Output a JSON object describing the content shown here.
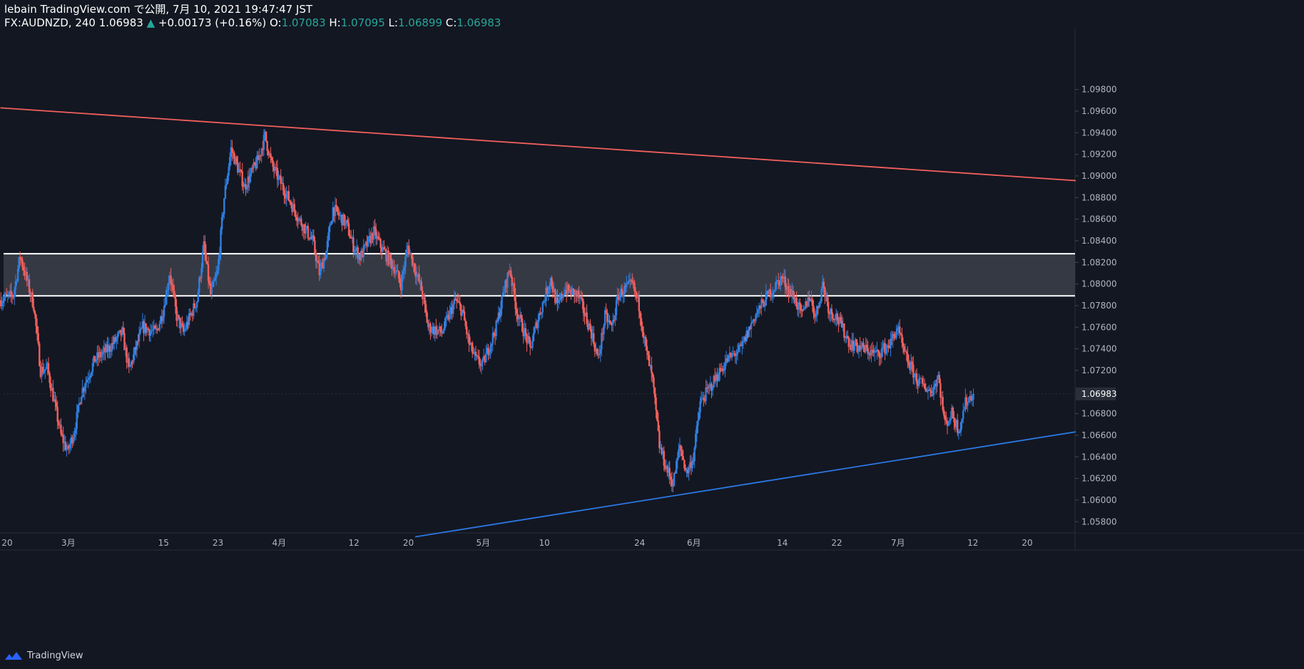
{
  "header": {
    "publisher": "lebain TradingView.com で公開, 7月 10, 2021 19:47:47 JST",
    "symbol": "FX:AUDNZD, 240",
    "last": "1.06983",
    "change": "+0.00173 (+0.16%)",
    "o_label": "O:",
    "o_value": "1.07083",
    "h_label": "H:",
    "h_value": "1.07095",
    "l_label": "L:",
    "l_value": "1.06899",
    "c_label": "C:",
    "c_value": "1.06983"
  },
  "footer": {
    "brand": "TradingView"
  },
  "colors": {
    "background": "#131722",
    "up_candle": "#2f7fe0",
    "down_candle": "#f2605c",
    "resistance_line": "#f2605c",
    "support_line": "#2b78e4",
    "zone_fill": "#3a3d47",
    "zone_border": "#ffffff",
    "axis_text": "#b2b5be"
  },
  "chart_data": {
    "type": "candlestick",
    "symbol": "FX:AUDNZD",
    "timeframe": "240",
    "y_ticks": [
      "1.09800",
      "1.09600",
      "1.09400",
      "1.09200",
      "1.09000",
      "1.08800",
      "1.08600",
      "1.08400",
      "1.08200",
      "1.08000",
      "1.07800",
      "1.07600",
      "1.07400",
      "1.07200",
      "1.06800",
      "1.06600",
      "1.06400",
      "1.06200",
      "1.06000",
      "1.05800"
    ],
    "ylim": [
      1.0565,
      1.099
    ],
    "x_ticks": [
      "20",
      "3月",
      "15",
      "23",
      "4月",
      "12",
      "20",
      "5月",
      "10",
      "24",
      "6月",
      "14",
      "22",
      "7月",
      "12",
      "20"
    ],
    "x_tick_dates": [
      "2021-02-20",
      "2021-03-01",
      "2021-03-15",
      "2021-03-23",
      "2021-04-01",
      "2021-04-12",
      "2021-04-20",
      "2021-05-01",
      "2021-05-10",
      "2021-05-24",
      "2021-06-01",
      "2021-06-14",
      "2021-06-22",
      "2021-07-01",
      "2021-07-12",
      "2021-07-20"
    ],
    "last_price": "1.06983",
    "price_path": [
      [
        "2021-02-19",
        1.0785
      ],
      [
        "2021-02-21",
        1.079
      ],
      [
        "2021-02-22",
        1.0826
      ],
      [
        "2021-02-24",
        1.078
      ],
      [
        "2021-02-25",
        1.072
      ],
      [
        "2021-02-26",
        1.0722
      ],
      [
        "2021-02-28",
        1.066
      ],
      [
        "2021-03-01",
        1.0645
      ],
      [
        "2021-03-02",
        1.0665
      ],
      [
        "2021-03-03",
        1.07
      ],
      [
        "2021-03-05",
        1.073
      ],
      [
        "2021-03-07",
        1.074
      ],
      [
        "2021-03-09",
        1.0755
      ],
      [
        "2021-03-10",
        1.072
      ],
      [
        "2021-03-12",
        1.076
      ],
      [
        "2021-03-14",
        1.0755
      ],
      [
        "2021-03-15",
        1.0775
      ],
      [
        "2021-03-16",
        1.081
      ],
      [
        "2021-03-17",
        1.077
      ],
      [
        "2021-03-18",
        1.0755
      ],
      [
        "2021-03-19",
        1.077
      ],
      [
        "2021-03-20",
        1.0785
      ],
      [
        "2021-03-21",
        1.0835
      ],
      [
        "2021-03-22",
        1.079
      ],
      [
        "2021-03-23",
        1.081
      ],
      [
        "2021-03-24",
        1.088
      ],
      [
        "2021-03-25",
        1.0925
      ],
      [
        "2021-03-27",
        1.089
      ],
      [
        "2021-03-29",
        1.0915
      ],
      [
        "2021-03-30",
        1.0937
      ],
      [
        "2021-03-31",
        1.091
      ],
      [
        "2021-04-02",
        1.0885
      ],
      [
        "2021-04-04",
        1.086
      ],
      [
        "2021-04-06",
        1.084
      ],
      [
        "2021-04-07",
        1.081
      ],
      [
        "2021-04-08",
        1.083
      ],
      [
        "2021-04-09",
        1.087
      ],
      [
        "2021-04-11",
        1.0855
      ],
      [
        "2021-04-12",
        1.0835
      ],
      [
        "2021-04-13",
        1.0825
      ],
      [
        "2021-04-15",
        1.0848
      ],
      [
        "2021-04-16",
        1.0835
      ],
      [
        "2021-04-18",
        1.0815
      ],
      [
        "2021-04-19",
        1.08
      ],
      [
        "2021-04-20",
        1.0835
      ],
      [
        "2021-04-22",
        1.0795
      ],
      [
        "2021-04-23",
        1.076
      ],
      [
        "2021-04-25",
        1.0755
      ],
      [
        "2021-04-27",
        1.0785
      ],
      [
        "2021-04-28",
        1.0775
      ],
      [
        "2021-04-29",
        1.0745
      ],
      [
        "2021-04-30",
        1.073
      ],
      [
        "2021-05-01",
        1.0725
      ],
      [
        "2021-05-03",
        1.076
      ],
      [
        "2021-05-04",
        1.079
      ],
      [
        "2021-05-05",
        1.0815
      ],
      [
        "2021-05-06",
        1.0775
      ],
      [
        "2021-05-08",
        1.074
      ],
      [
        "2021-05-09",
        1.0765
      ],
      [
        "2021-05-11",
        1.0805
      ],
      [
        "2021-05-12",
        1.0778
      ],
      [
        "2021-05-13",
        1.0795
      ],
      [
        "2021-05-15",
        1.079
      ],
      [
        "2021-05-17",
        1.0755
      ],
      [
        "2021-05-18",
        1.073
      ],
      [
        "2021-05-19",
        1.077
      ],
      [
        "2021-05-20",
        1.076
      ],
      [
        "2021-05-21",
        1.079
      ],
      [
        "2021-05-23",
        1.08
      ],
      [
        "2021-05-24",
        1.078
      ],
      [
        "2021-05-25",
        1.074
      ],
      [
        "2021-05-26",
        1.071
      ],
      [
        "2021-05-27",
        1.065
      ],
      [
        "2021-05-28",
        1.063
      ],
      [
        "2021-05-29",
        1.0615
      ],
      [
        "2021-05-30",
        1.065
      ],
      [
        "2021-05-31",
        1.0625
      ],
      [
        "2021-06-01",
        1.064
      ],
      [
        "2021-06-02",
        1.069
      ],
      [
        "2021-06-04",
        1.071
      ],
      [
        "2021-06-06",
        1.073
      ],
      [
        "2021-06-08",
        1.074
      ],
      [
        "2021-06-10",
        1.077
      ],
      [
        "2021-06-12",
        1.079
      ],
      [
        "2021-06-14",
        1.0806
      ],
      [
        "2021-06-16",
        1.0785
      ],
      [
        "2021-06-17",
        1.077
      ],
      [
        "2021-06-18",
        1.079
      ],
      [
        "2021-06-19",
        1.077
      ],
      [
        "2021-06-20",
        1.08
      ],
      [
        "2021-06-21",
        1.0775
      ],
      [
        "2021-06-22",
        1.077
      ],
      [
        "2021-06-24",
        1.0745
      ],
      [
        "2021-06-26",
        1.074
      ],
      [
        "2021-06-28",
        1.0735
      ],
      [
        "2021-06-30",
        1.0745
      ],
      [
        "2021-07-01",
        1.076
      ],
      [
        "2021-07-02",
        1.0735
      ],
      [
        "2021-07-04",
        1.071
      ],
      [
        "2021-07-06",
        1.07
      ],
      [
        "2021-07-07",
        1.0715
      ],
      [
        "2021-07-08",
        1.067
      ],
      [
        "2021-07-09",
        1.068
      ],
      [
        "2021-07-10",
        1.0665
      ],
      [
        "2021-07-11",
        1.069
      ],
      [
        "2021-07-12",
        1.0698
      ]
    ],
    "horizontal_zone": {
      "upper": 1.0828,
      "lower": 1.0789
    },
    "trend_lines": [
      {
        "name": "resistance",
        "from": [
          "2021-02-19",
          1.0963
        ],
        "to": [
          "2021-07-31",
          1.0894
        ]
      },
      {
        "name": "support",
        "from": [
          "2021-04-21",
          1.0566
        ],
        "to": [
          "2021-07-31",
          1.0667
        ]
      }
    ],
    "grid": false
  }
}
